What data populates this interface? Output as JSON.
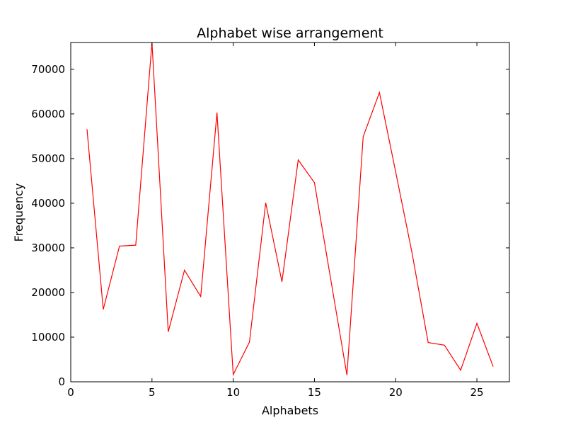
{
  "chart_data": {
    "type": "line",
    "title": "Alphabet wise arrangement",
    "xlabel": "Alphabets",
    "ylabel": "Frequency",
    "xlim": [
      0,
      27
    ],
    "ylim": [
      0,
      76000
    ],
    "xticks": [
      0,
      5,
      10,
      15,
      20,
      25
    ],
    "yticks": [
      0,
      10000,
      20000,
      30000,
      40000,
      50000,
      60000,
      70000
    ],
    "grid": false,
    "legend": "none",
    "series": [
      {
        "color": "#ff0000",
        "x": [
          1,
          2,
          3,
          4,
          5,
          6,
          7,
          8,
          9,
          10,
          11,
          12,
          13,
          14,
          15,
          16,
          17,
          18,
          19,
          20,
          21,
          22,
          23,
          24,
          25,
          26
        ],
        "y": [
          56600,
          16200,
          30400,
          30600,
          76000,
          11200,
          25000,
          19100,
          60300,
          1600,
          8900,
          40100,
          22400,
          49700,
          44600,
          23000,
          1500,
          54900,
          64800,
          47000,
          29000,
          8800,
          8200,
          2600,
          13100,
          3400
        ]
      }
    ]
  }
}
